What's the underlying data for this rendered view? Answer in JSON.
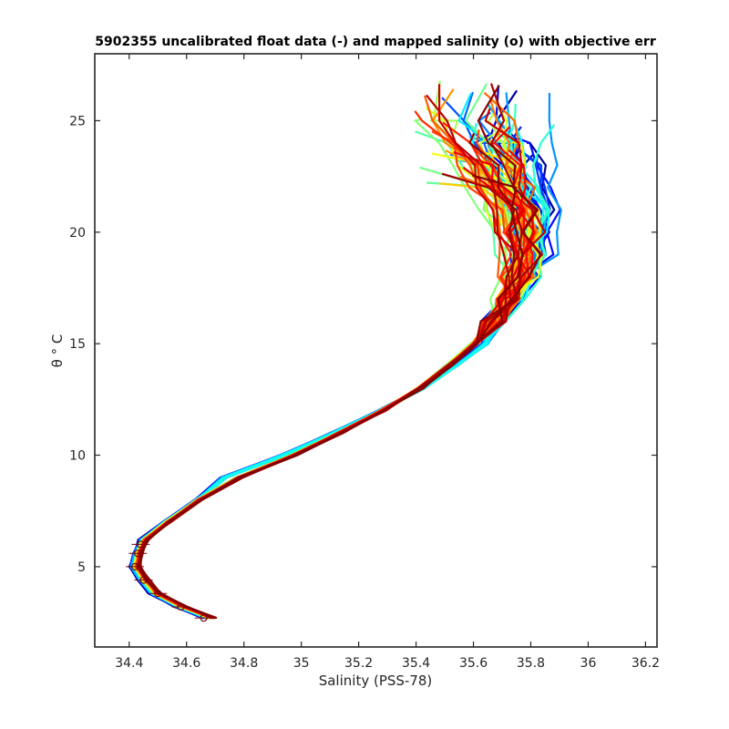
{
  "chart_data": {
    "type": "line",
    "title": "5902355 uncalibrated float data (-) and mapped salinity (o) with objective err",
    "xlabel": "Salinity (PSS-78)",
    "ylabel": "θ ° C",
    "xlim": [
      34.28,
      36.24
    ],
    "ylim": [
      1.4,
      28.0
    ],
    "x_ticks": [
      34.4,
      34.6,
      34.8,
      35,
      35.2,
      35.4,
      35.6,
      35.8,
      36,
      36.2
    ],
    "x_tick_labels": [
      "34.4",
      "34.6",
      "34.8",
      "35",
      "35.2",
      "35.4",
      "35.6",
      "35.8",
      "36",
      "36.2"
    ],
    "y_ticks": [
      5,
      10,
      15,
      20,
      25
    ],
    "y_tick_labels": [
      "5",
      "10",
      "15",
      "20",
      "25"
    ],
    "grid": false,
    "colormap": "jet",
    "colors": [
      "#00008f",
      "#0000ff",
      "#0080ff",
      "#00ffff",
      "#80ff80",
      "#ffff00",
      "#ff8000",
      "#ff0000",
      "#800000"
    ],
    "series_note": "profiles colored by cycle number, early (blue) to late (dark red)",
    "base_profile": {
      "theta": [
        2.7,
        3.2,
        3.8,
        4.4,
        5.0,
        5.6,
        6.2,
        7.0,
        8.0,
        9.0,
        10.0,
        11.0,
        12.0,
        13.0,
        14.0,
        15.0,
        16.0,
        17.0,
        18.0,
        19.0,
        20.0,
        21.0,
        22.0,
        23.0,
        24.0,
        25.0
      ],
      "salinity": [
        34.68,
        34.58,
        34.49,
        34.45,
        34.42,
        34.43,
        34.45,
        34.53,
        34.64,
        34.78,
        34.97,
        35.13,
        35.28,
        35.41,
        35.51,
        35.6,
        35.67,
        35.72,
        35.76,
        35.77,
        35.76,
        35.74,
        35.7,
        35.66,
        35.62,
        35.58
      ]
    },
    "profile_count": 90,
    "mapped_salinity_markers": [
      {
        "theta": 2.7,
        "salinity": 34.66
      },
      {
        "theta": 3.2,
        "salinity": 34.58
      },
      {
        "theta": 3.8,
        "salinity": 34.5
      },
      {
        "theta": 4.4,
        "salinity": 34.45
      },
      {
        "theta": 5.0,
        "salinity": 34.42
      },
      {
        "theta": 5.6,
        "salinity": 34.43
      },
      {
        "theta": 6.0,
        "salinity": 34.44
      }
    ]
  }
}
